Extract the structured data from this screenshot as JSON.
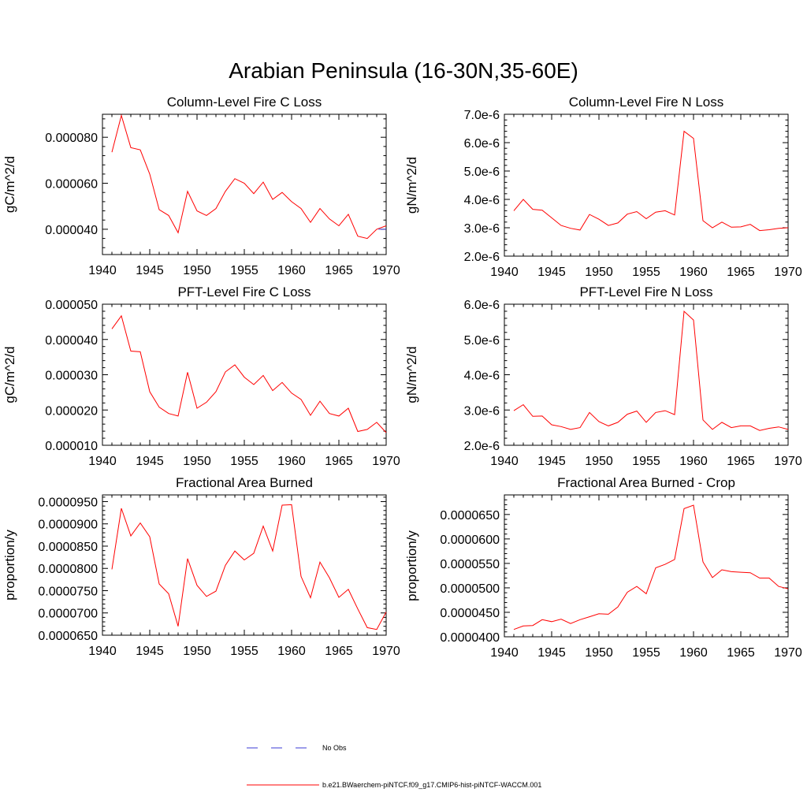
{
  "figure": {
    "title": "Arabian Peninsula (16-30N,35-60E)"
  },
  "legend": [
    {
      "label": "No Obs",
      "color": "#3b3bd6",
      "style": "dashed"
    },
    {
      "label": "b.e21.BWaerchem-piNTCF.f09_g17.CMIP6-hist-piNTCF-WACCM.001",
      "color": "#ff0000",
      "style": "solid"
    }
  ],
  "chart_data": [
    {
      "type": "line",
      "title": "Column-Level Fire C Loss",
      "xlabel": "",
      "ylabel": "gC/m^2/d",
      "xlim": [
        1940,
        1970
      ],
      "ylim": [
        2.9e-05,
        9e-05
      ],
      "xticks": [
        1940,
        1945,
        1950,
        1955,
        1960,
        1965,
        1970
      ],
      "xtick_labels": [
        "1940",
        "1945",
        "1950",
        "1955",
        "1960",
        "1965",
        "1970"
      ],
      "yticks": [
        4e-05,
        6e-05,
        8e-05
      ],
      "ytick_labels": [
        "0.000040",
        "0.000060",
        "0.000080"
      ],
      "x": [
        1941,
        1942,
        1943,
        1944,
        1945,
        1946,
        1947,
        1948,
        1949,
        1950,
        1951,
        1952,
        1953,
        1954,
        1955,
        1956,
        1957,
        1958,
        1959,
        1960,
        1961,
        1962,
        1963,
        1964,
        1965,
        1966,
        1967,
        1968,
        1969,
        1970
      ],
      "series": [
        {
          "name": "b.e21.BWaerchem-piNTCF.f09_g17.CMIP6-hist-piNTCF-WACCM.001",
          "color": "#ff0000",
          "values": [
            7.35e-05,
            8.95e-05,
            7.55e-05,
            7.45e-05,
            6.4e-05,
            4.85e-05,
            4.6e-05,
            3.85e-05,
            5.65e-05,
            4.8e-05,
            4.6e-05,
            4.9e-05,
            5.65e-05,
            6.2e-05,
            6e-05,
            5.55e-05,
            6.05e-05,
            5.3e-05,
            5.6e-05,
            5.2e-05,
            4.9e-05,
            4.3e-05,
            4.9e-05,
            4.45e-05,
            4.15e-05,
            4.65e-05,
            3.7e-05,
            3.6e-05,
            4e-05,
            4.15e-05
          ]
        }
      ],
      "obs_segment": {
        "x": [
          1969.2,
          1970
        ],
        "y": [
          4e-05,
          4e-05
        ]
      }
    },
    {
      "type": "line",
      "title": "Column-Level Fire N Loss",
      "xlabel": "",
      "ylabel": "gN/m^2/d",
      "xlim": [
        1940,
        1970
      ],
      "ylim": [
        2e-06,
        7e-06
      ],
      "xticks": [
        1940,
        1945,
        1950,
        1955,
        1960,
        1965,
        1970
      ],
      "xtick_labels": [
        "1940",
        "1945",
        "1950",
        "1955",
        "1960",
        "1965",
        "1970"
      ],
      "yticks": [
        2e-06,
        3e-06,
        4e-06,
        5e-06,
        6e-06,
        7e-06
      ],
      "ytick_labels": [
        "2.0e-6",
        "3.0e-6",
        "4.0e-6",
        "5.0e-6",
        "6.0e-6",
        "7.0e-6"
      ],
      "x": [
        1941,
        1942,
        1943,
        1944,
        1945,
        1946,
        1947,
        1948,
        1949,
        1950,
        1951,
        1952,
        1953,
        1954,
        1955,
        1956,
        1957,
        1958,
        1959,
        1960,
        1961,
        1962,
        1963,
        1964,
        1965,
        1966,
        1967,
        1968,
        1969,
        1970
      ],
      "series": [
        {
          "name": "b.e21.BWaerchem-piNTCF.f09_g17.CMIP6-hist-piNTCF-WACCM.001",
          "color": "#ff0000",
          "values": [
            3.6e-06,
            4e-06,
            3.65e-06,
            3.62e-06,
            3.35e-06,
            3.08e-06,
            2.98e-06,
            2.92e-06,
            3.47e-06,
            3.3e-06,
            3.08e-06,
            3.17e-06,
            3.48e-06,
            3.57e-06,
            3.32e-06,
            3.55e-06,
            3.6e-06,
            3.45e-06,
            6.4e-06,
            6.15e-06,
            3.25e-06,
            3e-06,
            3.2e-06,
            3.02e-06,
            3.03e-06,
            3.12e-06,
            2.9e-06,
            2.93e-06,
            2.98e-06,
            3e-06
          ]
        }
      ]
    },
    {
      "type": "line",
      "title": "PFT-Level Fire C Loss",
      "xlabel": "",
      "ylabel": "gC/m^2/d",
      "xlim": [
        1940,
        1970
      ],
      "ylim": [
        1e-05,
        5e-05
      ],
      "xticks": [
        1940,
        1945,
        1950,
        1955,
        1960,
        1965,
        1970
      ],
      "xtick_labels": [
        "1940",
        "1945",
        "1950",
        "1955",
        "1960",
        "1965",
        "1970"
      ],
      "yticks": [
        1e-05,
        2e-05,
        3e-05,
        4e-05,
        5e-05
      ],
      "ytick_labels": [
        "0.000010",
        "0.000020",
        "0.000030",
        "0.000040",
        "0.000050"
      ],
      "x": [
        1941,
        1942,
        1943,
        1944,
        1945,
        1946,
        1947,
        1948,
        1949,
        1950,
        1951,
        1952,
        1953,
        1954,
        1955,
        1956,
        1957,
        1958,
        1959,
        1960,
        1961,
        1962,
        1963,
        1964,
        1965,
        1966,
        1967,
        1968,
        1969,
        1970
      ],
      "series": [
        {
          "name": "b.e21.BWaerchem-piNTCF.f09_g17.CMIP6-hist-piNTCF-WACCM.001",
          "color": "#ff0000",
          "values": [
            4.3e-05,
            4.67e-05,
            3.67e-05,
            3.65e-05,
            2.52e-05,
            2.08e-05,
            1.9e-05,
            1.83e-05,
            3.07e-05,
            2.05e-05,
            2.22e-05,
            2.52e-05,
            3.08e-05,
            3.28e-05,
            2.93e-05,
            2.72e-05,
            2.98e-05,
            2.55e-05,
            2.78e-05,
            2.48e-05,
            2.3e-05,
            1.85e-05,
            2.25e-05,
            1.9e-05,
            1.83e-05,
            2.05e-05,
            1.39e-05,
            1.45e-05,
            1.65e-05,
            1.36e-05
          ]
        }
      ]
    },
    {
      "type": "line",
      "title": "PFT-Level Fire N Loss",
      "xlabel": "",
      "ylabel": "gN/m^2/d",
      "xlim": [
        1940,
        1970
      ],
      "ylim": [
        2e-06,
        6e-06
      ],
      "xticks": [
        1940,
        1945,
        1950,
        1955,
        1960,
        1965,
        1970
      ],
      "xtick_labels": [
        "1940",
        "1945",
        "1950",
        "1955",
        "1960",
        "1965",
        "1970"
      ],
      "yticks": [
        2e-06,
        3e-06,
        4e-06,
        5e-06,
        6e-06
      ],
      "ytick_labels": [
        "2.0e-6",
        "3.0e-6",
        "4.0e-6",
        "5.0e-6",
        "6.0e-6"
      ],
      "x": [
        1941,
        1942,
        1943,
        1944,
        1945,
        1946,
        1947,
        1948,
        1949,
        1950,
        1951,
        1952,
        1953,
        1954,
        1955,
        1956,
        1957,
        1958,
        1959,
        1960,
        1961,
        1962,
        1963,
        1964,
        1965,
        1966,
        1967,
        1968,
        1969,
        1970
      ],
      "series": [
        {
          "name": "b.e21.BWaerchem-piNTCF.f09_g17.CMIP6-hist-piNTCF-WACCM.001",
          "color": "#ff0000",
          "values": [
            2.98e-06,
            3.15e-06,
            2.82e-06,
            2.83e-06,
            2.58e-06,
            2.53e-06,
            2.45e-06,
            2.5e-06,
            2.93e-06,
            2.67e-06,
            2.55e-06,
            2.65e-06,
            2.88e-06,
            2.97e-06,
            2.65e-06,
            2.93e-06,
            2.98e-06,
            2.87e-06,
            5.8e-06,
            5.55e-06,
            2.72e-06,
            2.45e-06,
            2.65e-06,
            2.5e-06,
            2.55e-06,
            2.55e-06,
            2.42e-06,
            2.48e-06,
            2.52e-06,
            2.45e-06
          ]
        }
      ]
    },
    {
      "type": "line",
      "title": "Fractional Area Burned",
      "xlabel": "",
      "ylabel": "proportion/y",
      "xlim": [
        1940,
        1970
      ],
      "ylim": [
        6.5e-05,
        9.65e-05
      ],
      "xticks": [
        1940,
        1945,
        1950,
        1955,
        1960,
        1965,
        1970
      ],
      "xtick_labels": [
        "1940",
        "1945",
        "1950",
        "1955",
        "1960",
        "1965",
        "1970"
      ],
      "yticks": [
        6.5e-05,
        7e-05,
        7.5e-05,
        8e-05,
        8.5e-05,
        9e-05,
        9.5e-05
      ],
      "ytick_labels": [
        "0.0000650",
        "0.0000700",
        "0.0000750",
        "0.0000800",
        "0.0000850",
        "0.0000900",
        "0.0000950"
      ],
      "x": [
        1941,
        1942,
        1943,
        1944,
        1945,
        1946,
        1947,
        1948,
        1949,
        1950,
        1951,
        1952,
        1953,
        1954,
        1955,
        1956,
        1957,
        1958,
        1959,
        1960,
        1961,
        1962,
        1963,
        1964,
        1965,
        1966,
        1967,
        1968,
        1969,
        1970
      ],
      "series": [
        {
          "name": "b.e21.BWaerchem-piNTCF.f09_g17.CMIP6-hist-piNTCF-WACCM.001",
          "color": "#ff0000",
          "values": [
            7.98e-05,
            9.35e-05,
            8.73e-05,
            9.02e-05,
            8.71e-05,
            7.65e-05,
            7.43e-05,
            6.7e-05,
            8.22e-05,
            7.62e-05,
            7.37e-05,
            7.49e-05,
            8.07e-05,
            8.39e-05,
            8.19e-05,
            8.34e-05,
            8.95e-05,
            8.39e-05,
            9.42e-05,
            9.43e-05,
            7.82e-05,
            7.34e-05,
            8.14e-05,
            7.79e-05,
            7.35e-05,
            7.53e-05,
            7.09e-05,
            6.67e-05,
            6.63e-05,
            7.02e-05
          ]
        }
      ]
    },
    {
      "type": "line",
      "title": "Fractional Area Burned - Crop",
      "xlabel": "",
      "ylabel": "proportion/y",
      "xlim": [
        1940,
        1970
      ],
      "ylim": [
        4e-05,
        6.9e-05
      ],
      "xticks": [
        1940,
        1945,
        1950,
        1955,
        1960,
        1965,
        1970
      ],
      "xtick_labels": [
        "1940",
        "1945",
        "1950",
        "1955",
        "1960",
        "1965",
        "1970"
      ],
      "yticks": [
        4e-05,
        4.5e-05,
        5e-05,
        5.5e-05,
        6e-05,
        6.5e-05
      ],
      "ytick_labels": [
        "0.0000400",
        "0.0000450",
        "0.0000500",
        "0.0000550",
        "0.0000600",
        "0.0000650"
      ],
      "x": [
        1941,
        1942,
        1943,
        1944,
        1945,
        1946,
        1947,
        1948,
        1949,
        1950,
        1951,
        1952,
        1953,
        1954,
        1955,
        1956,
        1957,
        1958,
        1959,
        1960,
        1961,
        1962,
        1963,
        1964,
        1965,
        1966,
        1967,
        1968,
        1969,
        1970
      ],
      "series": [
        {
          "name": "b.e21.BWaerchem-piNTCF.f09_g17.CMIP6-hist-piNTCF-WACCM.001",
          "color": "#ff0000",
          "values": [
            4.15e-05,
            4.22e-05,
            4.23e-05,
            4.35e-05,
            4.31e-05,
            4.36e-05,
            4.27e-05,
            4.35e-05,
            4.41e-05,
            4.47e-05,
            4.46e-05,
            4.61e-05,
            4.91e-05,
            5.03e-05,
            4.88e-05,
            5.41e-05,
            5.48e-05,
            5.58e-05,
            6.62e-05,
            6.69e-05,
            5.53e-05,
            5.21e-05,
            5.37e-05,
            5.33e-05,
            5.32e-05,
            5.31e-05,
            5.2e-05,
            5.2e-05,
            5.03e-05,
            4.98e-05
          ]
        }
      ]
    }
  ]
}
